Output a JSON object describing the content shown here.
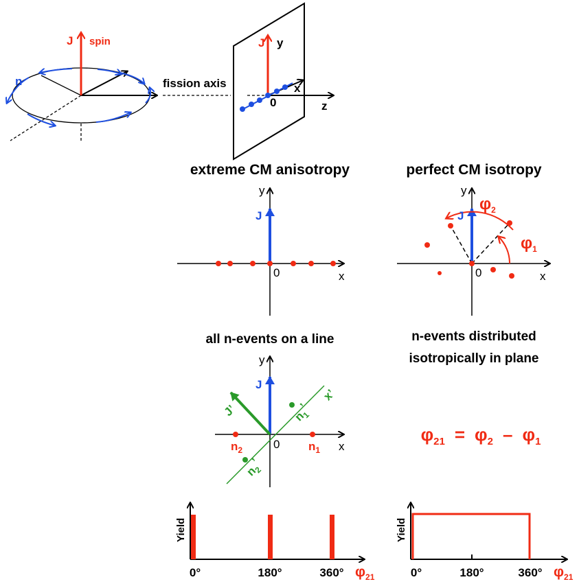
{
  "top_figure": {
    "spin_symbol": "J",
    "spin_word": "spin",
    "neutron": "n",
    "fission_axis": "fission axis",
    "plane": {
      "J": "J",
      "y": "y",
      "x": "x",
      "origin": "0",
      "z": "z"
    }
  },
  "panels": [
    {
      "title": "extreme CM anisotropy",
      "y": "y",
      "x": "x",
      "origin": "0",
      "J": "J",
      "caption": [
        "all n-events on a line"
      ]
    },
    {
      "title": "perfect CM isotropy",
      "y": "y",
      "x": "x",
      "origin": "0",
      "J": "J",
      "phi2": {
        "base": "φ",
        "sub": "2"
      },
      "phi1": {
        "base": "φ",
        "sub": "1"
      },
      "caption": [
        "n-events distributed",
        "isotropically in plane"
      ]
    }
  ],
  "rotated_frame": {
    "y": "y",
    "x": "x",
    "origin": "0",
    "J": "J",
    "J_prime": "J’",
    "x_prime": "x’",
    "n1_prime": {
      "base": "n",
      "sub": "1",
      "prime": "’"
    },
    "n2_prime": {
      "base": "n",
      "sub": "2",
      "prime": "’"
    },
    "n1": {
      "base": "n",
      "sub": "1"
    },
    "n2": {
      "base": "n",
      "sub": "2"
    }
  },
  "equation": {
    "lhs": {
      "base": "φ",
      "sub": "21"
    },
    "eq": "=",
    "a": {
      "base": "φ",
      "sub": "2"
    },
    "op": "–",
    "b": {
      "base": "φ",
      "sub": "1"
    }
  },
  "histograms": [
    {
      "y_label": "Yield",
      "x_ticks": [
        "0°",
        "180°",
        "360°"
      ],
      "x_label": {
        "base": "φ",
        "sub": "21"
      }
    },
    {
      "y_label": "Yield",
      "x_ticks": [
        "0°",
        "180°",
        "360°"
      ],
      "x_label": {
        "base": "φ",
        "sub": "21"
      }
    }
  ]
}
